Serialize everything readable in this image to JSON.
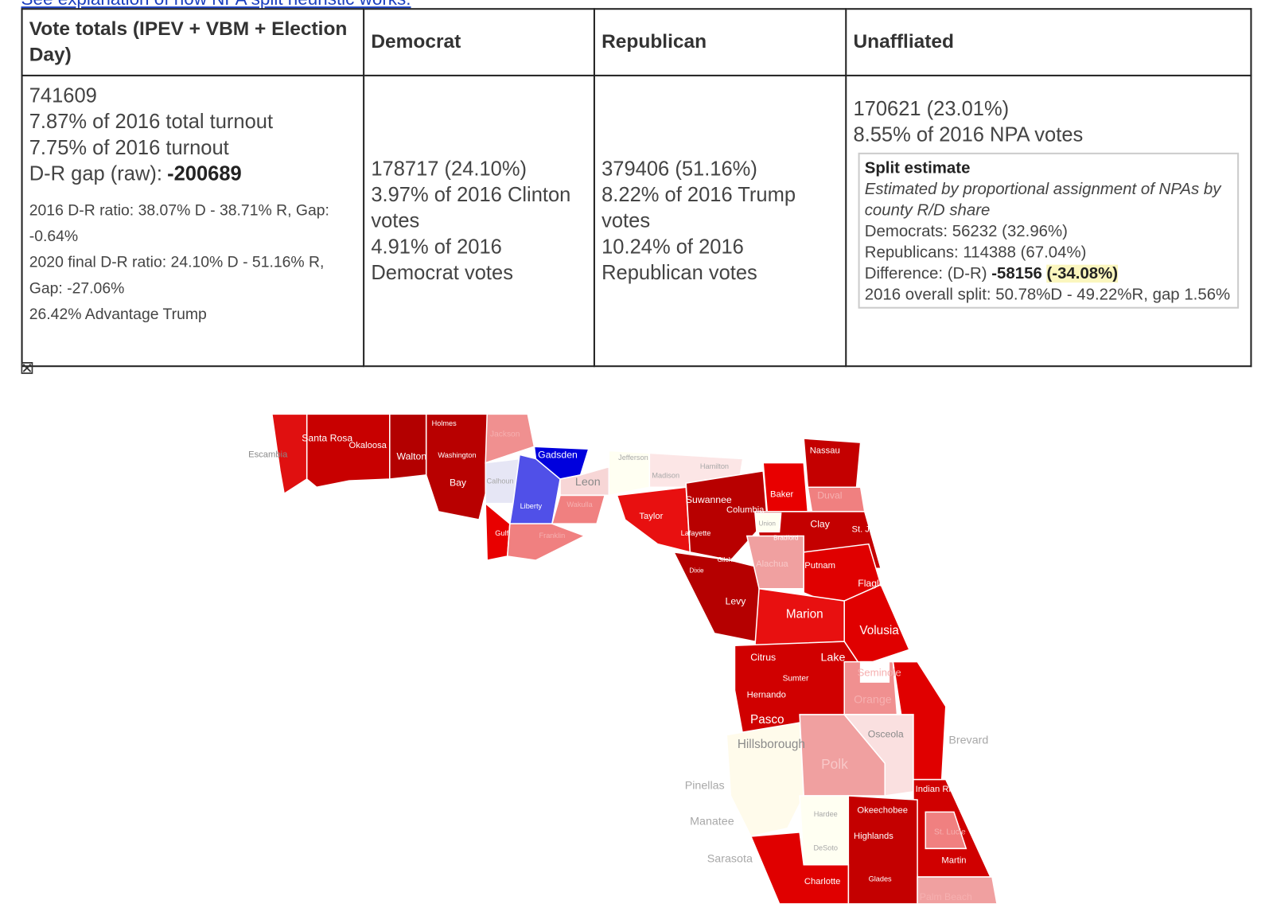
{
  "link": "See explanation of how NPA split heuristic works.",
  "table": {
    "headers": [
      "Vote totals (IPEV + VBM + Election Day)",
      "Democrat",
      "Republican",
      "Unaffliated"
    ],
    "totals": {
      "lines": [
        "741609",
        "7.87% of 2016 total turnout",
        "7.75% of 2016 turnout"
      ],
      "gap_label": "D-R gap (raw):",
      "gap_value": "-200689",
      "notes": [
        "2016 D-R ratio: 38.07% D - 38.71% R, Gap: -0.64%",
        "2020 final D-R ratio: 24.10% D - 51.16% R, Gap: -27.06%",
        "26.42% Advantage Trump"
      ]
    },
    "democrat": [
      "178717 (24.10%)",
      "3.97% of 2016 Clinton votes",
      "4.91% of 2016 Democrat votes"
    ],
    "republican": [
      "379406 (51.16%)",
      "8.22% of 2016 Trump votes",
      "10.24% of 2016 Republican votes"
    ],
    "unaffiliated": {
      "lines": [
        "170621 (23.01%)",
        "8.55% of 2016 NPA votes"
      ],
      "split": {
        "title": "Split estimate",
        "description": "Estimated by proportional assignment of NPAs by county R/D share",
        "democrats": "Democrats: 56232 (32.96%)",
        "republicans": "Republicans: 114388 (67.04%)",
        "difference_label": "Difference: (D-R)",
        "difference_value": "-58156",
        "difference_pct": "(-34.08%)",
        "overall": "2016 overall split: 50.78%D - 49.22%R, gap 1.56%"
      }
    }
  },
  "image_placeholder": "⊠",
  "map": {
    "counties": [
      "Escambia",
      "Santa Rosa",
      "Okaloosa",
      "Walton",
      "Holmes",
      "Washington",
      "Bay",
      "Jackson",
      "Calhoun",
      "Gadsden",
      "Liberty",
      "Leon",
      "Jefferson",
      "Madison",
      "Hamilton",
      "Gulf",
      "Franklin",
      "Wakulla",
      "Taylor",
      "Suwannee",
      "Columbia",
      "Lafayette",
      "Baker",
      "Nassau",
      "Duval",
      "Union",
      "Bradford",
      "Clay",
      "St. Johns",
      "Dixie",
      "Gilchrist",
      "Alachua",
      "Putnam",
      "Flagler",
      "Levy",
      "Marion",
      "Volusia",
      "Citrus",
      "Sumter",
      "Lake",
      "Seminole",
      "Orange",
      "Hernando",
      "Pasco",
      "Hillsborough",
      "Osceola",
      "Brevard",
      "Polk",
      "Pinellas",
      "Indian River",
      "Manatee",
      "Hardee",
      "Okeechobee",
      "Highlands",
      "St. Lucie",
      "Sarasota",
      "DeSoto",
      "Martin",
      "Charlotte",
      "Glades",
      "Palm Beach"
    ]
  }
}
